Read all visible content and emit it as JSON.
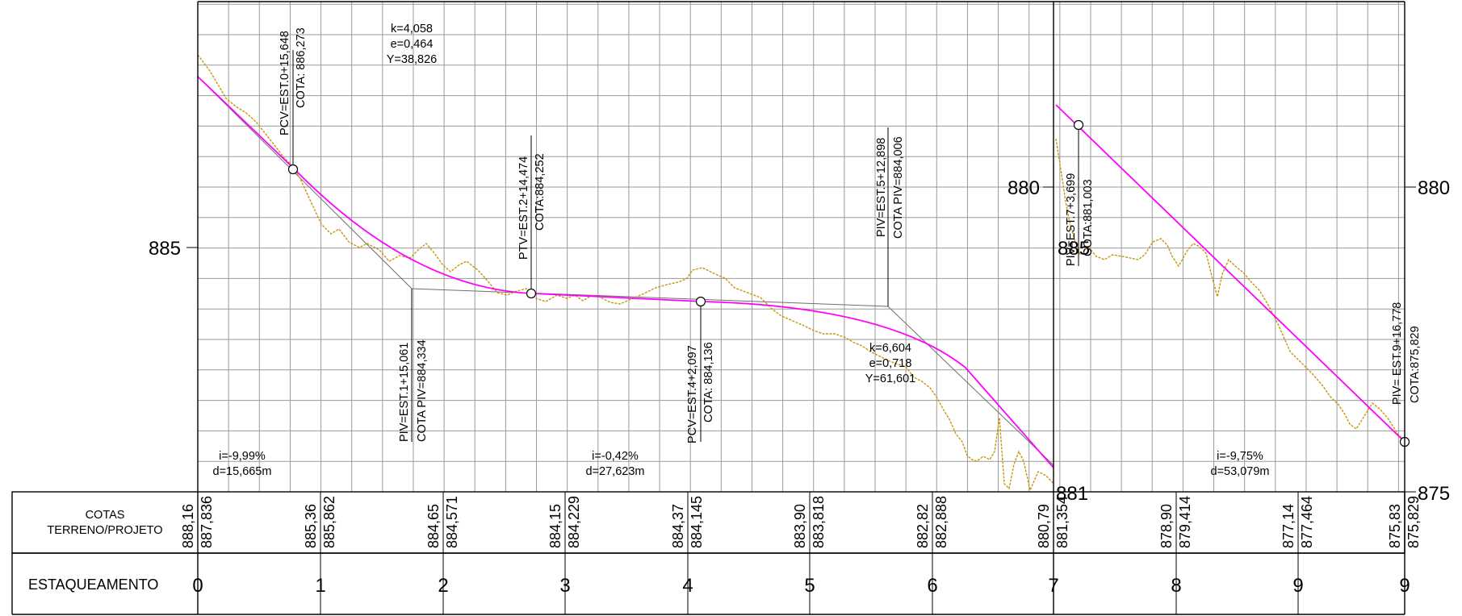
{
  "colors": {
    "terrain": "#c8960a",
    "design_grade": "#ff00ff",
    "tangents": "#6e6e6e",
    "grid": "#9a9a9a"
  },
  "table": {
    "cotas_label_line1": "COTAS",
    "cotas_label_line2": "TERRENO/PROJETO",
    "stakes_label": "ESTAQUEAMENTO"
  },
  "axis": {
    "left_label": "885",
    "break_label_upper": "880",
    "break_label_overlap": "885",
    "break_label_bottom": "881",
    "right_label_upper": "880",
    "right_label_lower": "875"
  },
  "stations": [
    "0",
    "1",
    "2",
    "3",
    "4",
    "5",
    "6",
    "7",
    "8",
    "9",
    "9"
  ],
  "cotas": [
    {
      "terreno": "888,16",
      "projeto": "887,836"
    },
    {
      "terreno": "885,36",
      "projeto": "885,862"
    },
    {
      "terreno": "884,65",
      "projeto": "884,571"
    },
    {
      "terreno": "884,15",
      "projeto": "884,229"
    },
    {
      "terreno": "884,37",
      "projeto": "884,145"
    },
    {
      "terreno": "883,90",
      "projeto": "883,818"
    },
    {
      "terreno": "882,82",
      "projeto": "882,888"
    },
    {
      "terreno": "880,79",
      "projeto": "881,354"
    },
    {
      "terreno": "878,90",
      "projeto": "879,414"
    },
    {
      "terreno": "877,14",
      "projeto": "877,464"
    },
    {
      "terreno": "875,83",
      "projeto": "875,829"
    }
  ],
  "annotations": {
    "pcv1": {
      "line1": "PCV=EST.0+15,648",
      "line2": "COTA: 886,273"
    },
    "curve1": {
      "k": "k=4,058",
      "e": "e=0,464",
      "y": "Y=38,826"
    },
    "piv1": {
      "line1": "PIV=EST.1+15,061",
      "line2": "COTA PIV=884,334"
    },
    "ptv1": {
      "line1": "PTV=EST.2+14,474",
      "line2": "COTA:884,252"
    },
    "pcv2": {
      "line1": "PCV=EST.4+2,097",
      "line2": "COTA: 884,136"
    },
    "piv2": {
      "line1": "PIV=EST.5+12,898",
      "line2": "COTA PIV=884,006"
    },
    "curve2": {
      "k": "k=6,604",
      "e": "e=0,718",
      "y": "Y=61,601"
    },
    "pv7": {
      "line1": "PIV=EST.7+3,699",
      "line2": "COTA:881,003"
    },
    "piv9": {
      "line1": "PIV= EST.9+16,778",
      "line2": "COTA:875,829"
    }
  },
  "grades": [
    {
      "i": "i=-9,99%",
      "d": "d=15,665m"
    },
    {
      "i": "i=-0,42%",
      "d": "d=27,623m"
    },
    {
      "i": "i=-9,75%",
      "d": "d=53,079m"
    }
  ]
}
